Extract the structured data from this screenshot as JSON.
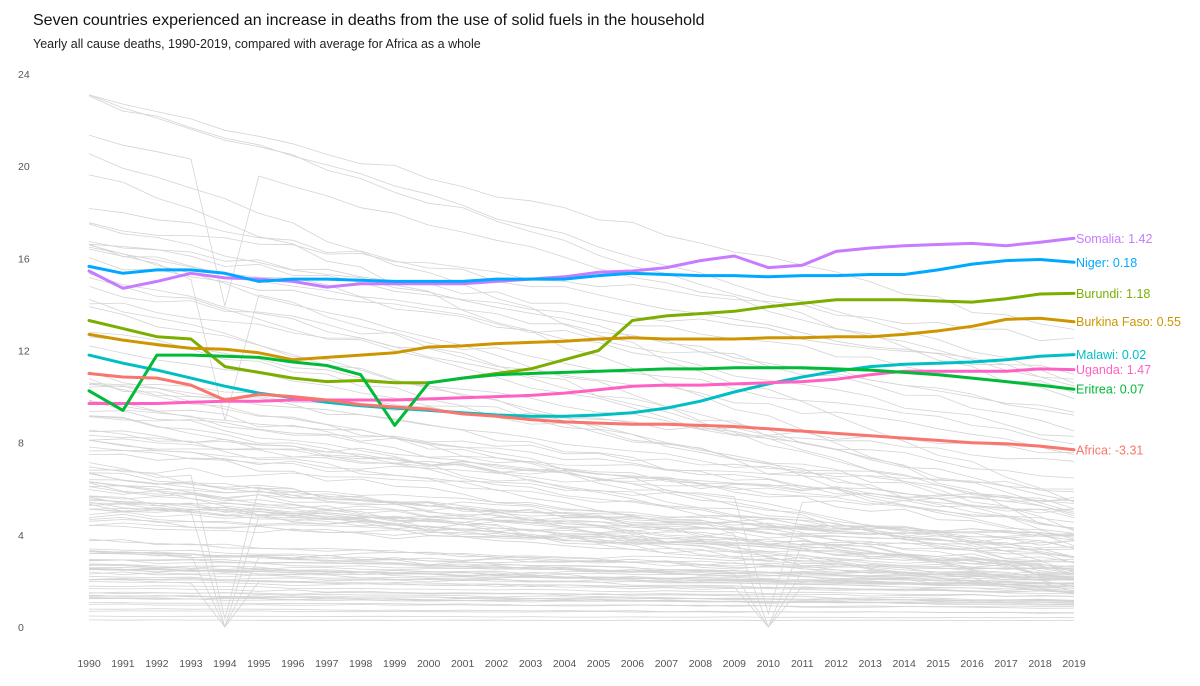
{
  "title": "Seven countries experienced an increase in deaths from the use of solid fuels in the household",
  "subtitle": "Yearly all cause deaths, 1990-2019, compared with average for Africa as a whole",
  "chart_data": {
    "type": "line",
    "title": "Seven countries experienced an increase in deaths from the use of solid fuels in the household",
    "subtitle": "Yearly all cause deaths, 1990-2019, compared with average for Africa as a whole",
    "xlabel": "",
    "ylabel": "",
    "xlim": [
      1990,
      2019
    ],
    "ylim": [
      0,
      24
    ],
    "y_ticks": [
      0,
      4,
      8,
      12,
      16,
      20,
      24
    ],
    "x": [
      1990,
      1991,
      1992,
      1993,
      1994,
      1995,
      1996,
      1997,
      1998,
      1999,
      2000,
      2001,
      2002,
      2003,
      2004,
      2005,
      2006,
      2007,
      2008,
      2009,
      2010,
      2011,
      2012,
      2013,
      2014,
      2015,
      2016,
      2017,
      2018,
      2019
    ],
    "grid": false,
    "background_series_color": "#d4d4d4",
    "highlight_series": [
      {
        "label": "Somalia: 1.42",
        "color": "#c77cff",
        "values": [
          15.45,
          14.7,
          15.0,
          15.35,
          15.15,
          15.1,
          15.0,
          14.75,
          14.9,
          14.9,
          14.9,
          14.9,
          15.0,
          15.1,
          15.2,
          15.4,
          15.45,
          15.6,
          15.9,
          16.1,
          15.6,
          15.7,
          16.3,
          16.45,
          16.55,
          16.6,
          16.65,
          16.55,
          16.7,
          16.87
        ]
      },
      {
        "label": "Niger: 0.18",
        "color": "#00a9ff",
        "values": [
          15.65,
          15.35,
          15.5,
          15.5,
          15.35,
          15.0,
          15.1,
          15.1,
          15.05,
          15.0,
          15.0,
          15.0,
          15.1,
          15.1,
          15.1,
          15.25,
          15.35,
          15.3,
          15.25,
          15.25,
          15.2,
          15.25,
          15.25,
          15.3,
          15.3,
          15.5,
          15.75,
          15.9,
          15.95,
          15.83
        ]
      },
      {
        "label": "Burundi: 1.18",
        "color": "#7cae00",
        "values": [
          13.3,
          12.95,
          12.6,
          12.5,
          11.3,
          11.05,
          10.8,
          10.65,
          10.7,
          10.6,
          10.6,
          10.8,
          11.0,
          11.2,
          11.6,
          12.0,
          13.3,
          13.5,
          13.6,
          13.7,
          13.9,
          14.05,
          14.2,
          14.2,
          14.2,
          14.15,
          14.1,
          14.25,
          14.45,
          14.48
        ]
      },
      {
        "label": "Burkina Faso: 0.55",
        "color": "#cd9600",
        "values": [
          12.7,
          12.45,
          12.25,
          12.1,
          12.05,
          11.9,
          11.6,
          11.7,
          11.8,
          11.9,
          12.15,
          12.2,
          12.3,
          12.35,
          12.4,
          12.5,
          12.55,
          12.5,
          12.5,
          12.5,
          12.55,
          12.55,
          12.6,
          12.6,
          12.7,
          12.85,
          13.05,
          13.35,
          13.4,
          13.25
        ]
      },
      {
        "label": "Malawi: 0.02",
        "color": "#00bfc4",
        "values": [
          11.8,
          11.45,
          11.15,
          10.8,
          10.45,
          10.15,
          9.95,
          9.75,
          9.6,
          9.5,
          9.4,
          9.3,
          9.2,
          9.15,
          9.15,
          9.2,
          9.3,
          9.5,
          9.8,
          10.2,
          10.55,
          10.85,
          11.1,
          11.3,
          11.4,
          11.45,
          11.5,
          11.6,
          11.75,
          11.82
        ]
      },
      {
        "label": "Uganda: 1.47",
        "color": "#ff61c3",
        "values": [
          9.7,
          9.7,
          9.7,
          9.75,
          9.8,
          9.8,
          9.85,
          9.85,
          9.85,
          9.85,
          9.9,
          9.95,
          10.0,
          10.05,
          10.15,
          10.3,
          10.45,
          10.5,
          10.5,
          10.55,
          10.6,
          10.65,
          10.75,
          10.95,
          11.1,
          11.1,
          11.1,
          11.1,
          11.2,
          11.17
        ]
      },
      {
        "label": "Eritrea: 0.07",
        "color": "#00ba38",
        "values": [
          10.25,
          9.4,
          11.8,
          11.8,
          11.75,
          11.7,
          11.5,
          11.35,
          10.95,
          8.75,
          10.6,
          10.8,
          10.95,
          11.0,
          11.05,
          11.1,
          11.15,
          11.2,
          11.2,
          11.25,
          11.25,
          11.25,
          11.2,
          11.15,
          11.05,
          10.95,
          10.8,
          10.65,
          10.5,
          10.32
        ]
      },
      {
        "label": "Africa: -3.31",
        "color": "#f8766d",
        "values": [
          11.0,
          10.85,
          10.8,
          10.5,
          9.85,
          10.1,
          10.0,
          9.85,
          9.65,
          9.55,
          9.45,
          9.25,
          9.15,
          9.0,
          8.9,
          8.85,
          8.8,
          8.8,
          8.75,
          8.7,
          8.6,
          8.5,
          8.4,
          8.3,
          8.2,
          8.1,
          8.0,
          7.95,
          7.85,
          7.69
        ]
      }
    ]
  }
}
